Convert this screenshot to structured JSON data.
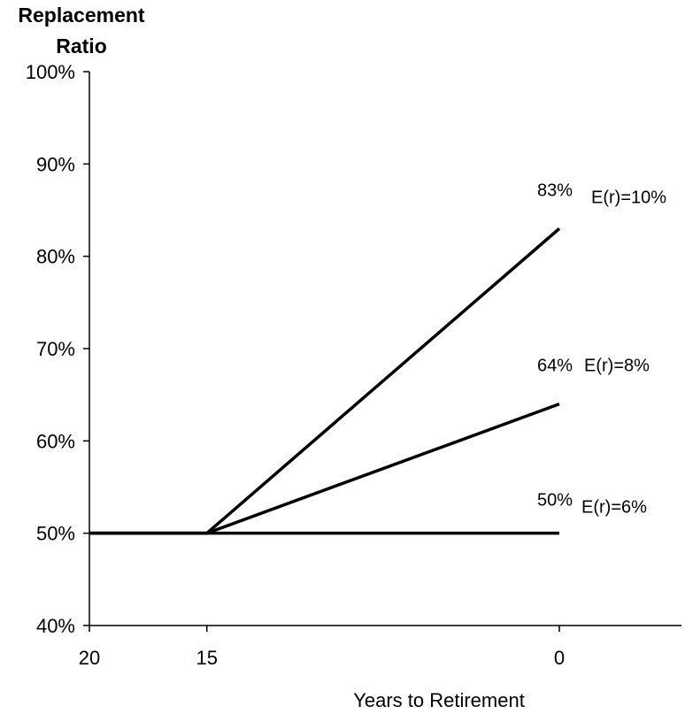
{
  "chart_data": {
    "type": "line",
    "ylabel": [
      "Replacement",
      "Ratio"
    ],
    "xlabel": "Years to Retirement",
    "x_ticks": [
      20,
      15,
      0
    ],
    "x_tick_labels": [
      "20",
      "15",
      "0"
    ],
    "y_ticks": [
      40,
      50,
      60,
      70,
      80,
      90,
      100
    ],
    "y_tick_labels": [
      "40%",
      "50%",
      "60%",
      "70%",
      "80%",
      "90%",
      "100%"
    ],
    "ylim": [
      40,
      100
    ],
    "grid": false,
    "series": [
      {
        "name": "E(r)=10%",
        "points": [
          [
            20,
            50
          ],
          [
            15,
            50
          ],
          [
            0,
            83
          ]
        ],
        "end_label": "83%"
      },
      {
        "name": "E(r)=8%",
        "points": [
          [
            20,
            50
          ],
          [
            15,
            50
          ],
          [
            0,
            64
          ]
        ],
        "end_label": "64%"
      },
      {
        "name": "E(r)=6%",
        "points": [
          [
            20,
            50
          ],
          [
            15,
            50
          ],
          [
            0,
            50
          ]
        ],
        "end_label": "50%"
      }
    ]
  }
}
